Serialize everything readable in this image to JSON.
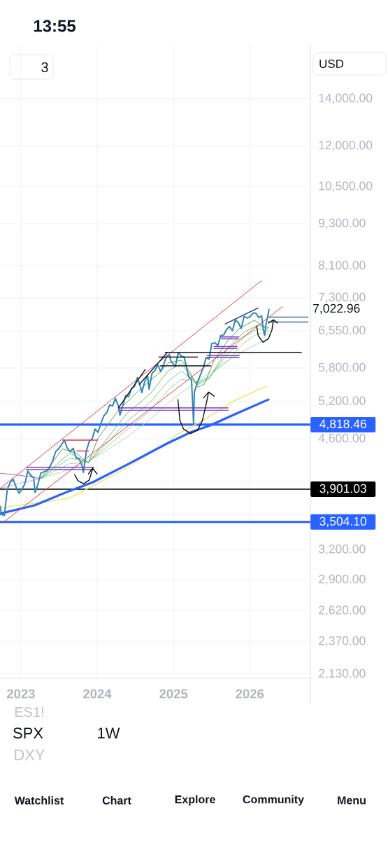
{
  "chart_data": {
    "type": "line",
    "log": "y",
    "grid": true,
    "xlim": [
      "2022-09-23",
      "2026-10-18"
    ],
    "ylim": [
      2100,
      16700
    ],
    "xticks": [
      "2023",
      "2024",
      "2025",
      "2026"
    ],
    "yticks": [
      {
        "value": 2130,
        "label": "2,130.00"
      },
      {
        "value": 2370,
        "label": "2,370.00"
      },
      {
        "value": 2620,
        "label": "2,620.00"
      },
      {
        "value": 2900,
        "label": "2,900.00"
      },
      {
        "value": 3200,
        "label": "3,200.00"
      },
      {
        "value": 3600,
        "label": null
      },
      {
        "value": 4000,
        "label": null
      },
      {
        "value": 4600,
        "label": "4,600.00"
      },
      {
        "value": 5200,
        "label": "5,200.00"
      },
      {
        "value": 5800,
        "label": "5,800.00"
      },
      {
        "value": 6550,
        "label": "6,550.00"
      },
      {
        "value": 7300,
        "label": "7,300.00"
      },
      {
        "value": 8100,
        "label": "8,100.00"
      },
      {
        "value": 9300,
        "label": "9,300.00"
      },
      {
        "value": 10500,
        "label": "10,500.00"
      },
      {
        "value": 12000,
        "label": "12,000.00"
      },
      {
        "value": 14000,
        "label": "14,000.00"
      }
    ],
    "ref_lines": [
      {
        "axis": "y",
        "value": 4818.46,
        "label": "4,818.46",
        "color": "#2962ff"
      },
      {
        "axis": "y",
        "value": 3901.03,
        "label": "3,901.03",
        "color": "#000000"
      },
      {
        "axis": "y",
        "value": 3504.1,
        "label": "3,504.10",
        "color": "#2962ff"
      }
    ],
    "series": [
      {
        "color": "#8e44ad",
        "x": [
          "2022-09-23",
          "2023-01-01",
          "2023-04-05"
        ],
        "values": [
          4110,
          4080,
          4040
        ]
      },
      {
        "color": "#b39ddb",
        "x": [
          "2022-09-23",
          "2023-01-01",
          "2023-04-05"
        ],
        "values": [
          3910,
          3980,
          4040
        ]
      },
      {
        "color": "#a5d6a7",
        "x": [
          "2023-04-05",
          "2023-08-22",
          "2023-10-30",
          "2024-02-12",
          "2024-05-23",
          "2024-09-11",
          "2025-01-05",
          "2025-04-26",
          "2025-08-17",
          "2025-12-05",
          "2026-04-01"
        ],
        "values": [
          4040,
          4160,
          4250,
          4420,
          4630,
          4900,
          5260,
          5560,
          5850,
          6140,
          6400
        ]
      },
      {
        "color": "#93cf95",
        "x": [
          "2023-04-05",
          "2023-08-22",
          "2023-11-20",
          "2024-02-12",
          "2024-05-23",
          "2024-09-11",
          "2024-12-08",
          "2025-02-08",
          "2025-04-26",
          "2025-06-21",
          "2025-09-19",
          "2025-12-05",
          "2026-02-10",
          "2026-04-01"
        ],
        "values": [
          4040,
          4240,
          4260,
          4470,
          4740,
          5040,
          5400,
          5590,
          5540,
          5650,
          5950,
          6300,
          6500,
          6470
        ]
      },
      {
        "color": "#7cc47f",
        "x": [
          "2023-04-05",
          "2023-08-22",
          "2023-11-20",
          "2024-02-12",
          "2024-05-23",
          "2024-09-11",
          "2024-12-08",
          "2025-02-08",
          "2025-04-26",
          "2025-06-21",
          "2025-09-19",
          "2025-12-05",
          "2026-02-10",
          "2026-04-01"
        ],
        "values": [
          4040,
          4320,
          4260,
          4520,
          4870,
          5180,
          5560,
          5740,
          5520,
          5620,
          6080,
          6420,
          6600,
          6530
        ]
      },
      {
        "color": "#5cb860",
        "x": [
          "2023-04-05",
          "2023-08-22",
          "2023-11-20",
          "2024-02-12",
          "2024-05-23",
          "2024-09-11",
          "2024-12-08",
          "2025-02-08",
          "2025-04-26",
          "2025-06-21",
          "2025-09-19",
          "2025-12-05",
          "2026-02-10",
          "2026-04-01"
        ],
        "values": [
          4040,
          4390,
          4250,
          4580,
          5000,
          5330,
          5750,
          5880,
          5490,
          5600,
          6200,
          6520,
          6680,
          6580
        ]
      },
      {
        "color": "#43a047",
        "x": [
          "2023-04-05",
          "2023-07-19",
          "2023-09-25",
          "2023-11-20",
          "2024-01-03",
          "2024-04-12",
          "2024-07-22",
          "2024-10-23",
          "2024-12-08",
          "2025-02-08",
          "2025-03-24",
          "2025-04-26",
          "2025-05-29",
          "2025-07-14",
          "2025-09-19",
          "2025-11-11",
          "2026-01-24",
          "2026-03-05",
          "2026-04-03"
        ],
        "values": [
          4040,
          4450,
          4380,
          4250,
          4600,
          5050,
          5400,
          5700,
          5900,
          5950,
          5700,
          5450,
          5500,
          5950,
          6350,
          6600,
          6780,
          6650,
          6620
        ]
      },
      {
        "color": "#f2e35c",
        "x": [
          "2022-09-23",
          "2023-01-11",
          "2023-04-05",
          "2023-08-22",
          "2023-12-10",
          "2024-05-26",
          "2024-12-02",
          "2025-01-15",
          "2025-05-19",
          "2025-10-14",
          "2026-03-24"
        ],
        "values": [
          3670,
          3710,
          3730,
          3790,
          3940,
          4190,
          4540,
          4660,
          4880,
          5200,
          5470
        ]
      },
      {
        "color": "#2962ff",
        "x": [
          "2022-09-23",
          "2023-03-08",
          "2023-08-22",
          "2023-12-10",
          "2024-05-26",
          "2024-12-02",
          "2025-03-24",
          "2025-06-21",
          "2025-11-01",
          "2026-03-31"
        ],
        "values": [
          3600,
          3700,
          3880,
          3990,
          4230,
          4530,
          4700,
          4800,
          5000,
          5230
        ]
      },
      {
        "color": "#e53950",
        "x": [
          "2022-09-23",
          "2026-02-26"
        ],
        "values": [
          3910,
          7720
        ]
      },
      {
        "color": "#e53950",
        "x": [
          "2022-10-09",
          "2026-06-07"
        ],
        "values": [
          3500,
          7090
        ]
      },
      {
        "color": "#2f86b8",
        "x": [
          "2022-09-23",
          "2022-09-30",
          "2022-10-14",
          "2022-10-28",
          "2022-11-11",
          "2022-11-25",
          "2022-12-09",
          "2022-12-23",
          "2023-01-06",
          "2023-01-20",
          "2023-02-03",
          "2023-02-17",
          "2023-03-03",
          "2023-03-10",
          "2023-03-24",
          "2023-04-06",
          "2023-04-21",
          "2023-05-05",
          "2023-05-19",
          "2023-06-02",
          "2023-06-16",
          "2023-06-30",
          "2023-07-14",
          "2023-07-28",
          "2023-08-11",
          "2023-08-25",
          "2023-09-08",
          "2023-09-22",
          "2023-10-06",
          "2023-10-20",
          "2023-10-27",
          "2023-11-10",
          "2023-11-24",
          "2023-12-08",
          "2023-12-22",
          "2024-01-05",
          "2024-01-19",
          "2024-02-02",
          "2024-02-16",
          "2024-03-01",
          "2024-03-15",
          "2024-03-28",
          "2024-04-12",
          "2024-04-19",
          "2024-05-03",
          "2024-05-17",
          "2024-05-31",
          "2024-06-14",
          "2024-06-28",
          "2024-07-12",
          "2024-07-26",
          "2024-08-02",
          "2024-08-16",
          "2024-08-30",
          "2024-09-06",
          "2024-09-20",
          "2024-10-04",
          "2024-10-18",
          "2024-11-01",
          "2024-11-15",
          "2024-11-29",
          "2024-12-13",
          "2024-12-20",
          "2025-01-10",
          "2025-01-24",
          "2025-02-07",
          "2025-02-21",
          "2025-03-07",
          "2025-03-14",
          "2025-03-28",
          "2025-04-04",
          "2025-04-07",
          "2025-04-11",
          "2025-04-25",
          "2025-05-09",
          "2025-05-23",
          "2025-06-06",
          "2025-06-20",
          "2025-07-03",
          "2025-07-18",
          "2025-08-01",
          "2025-08-15",
          "2025-08-29",
          "2025-09-12",
          "2025-09-26",
          "2025-10-10",
          "2025-10-24",
          "2025-11-07",
          "2025-11-21",
          "2025-12-05",
          "2025-12-19",
          "2026-01-02",
          "2026-01-16",
          "2026-01-30",
          "2026-02-13",
          "2026-02-27",
          "2026-03-06",
          "2026-03-13",
          "2026-03-20",
          "2026-03-27",
          "2026-04-03"
        ],
        "values": [
          3690,
          3590,
          3580,
          3900,
          3990,
          4030,
          3930,
          3850,
          3900,
          3970,
          4140,
          4080,
          4050,
          3860,
          3970,
          4110,
          4130,
          4140,
          4190,
          4280,
          4410,
          4450,
          4510,
          4580,
          4460,
          4410,
          4460,
          4320,
          4310,
          4220,
          4120,
          4420,
          4560,
          4600,
          4750,
          4700,
          4840,
          4960,
          5010,
          5140,
          5120,
          5250,
          5120,
          4970,
          5130,
          5300,
          5280,
          5430,
          5460,
          5620,
          5460,
          5350,
          5550,
          5650,
          5410,
          5700,
          5750,
          5860,
          5730,
          5870,
          6030,
          6050,
          5930,
          5830,
          6100,
          6030,
          6010,
          5770,
          5640,
          5580,
          5070,
          4840,
          5360,
          5530,
          5660,
          5800,
          6000,
          5970,
          6280,
          6300,
          6240,
          6450,
          6460,
          6580,
          6640,
          6550,
          6790,
          6730,
          6600,
          6870,
          6830,
          6860,
          6940,
          6940,
          6840,
          6880,
          6600,
          6450,
          6700,
          6850,
          7022.96
        ]
      },
      {
        "color": "#7b3fbf",
        "x": [
          "2023-01-27",
          "2023-12-17"
        ],
        "values": [
          4190,
          4190
        ]
      },
      {
        "color": "#7b3fbf",
        "x": [
          "2023-01-27",
          "2023-12-17"
        ],
        "values": [
          4160,
          4160
        ]
      },
      {
        "color": "#e53950",
        "x": [
          "2023-07-19",
          "2024-01-03"
        ],
        "values": [
          4580,
          4580
        ]
      },
      {
        "color": "#e53950",
        "x": [
          "2023-09-25",
          "2023-11-20"
        ],
        "values": [
          4420,
          4420
        ]
      },
      {
        "color": "#7b3fbf",
        "x": [
          "2024-04-12",
          "2025-09-19"
        ],
        "values": [
          5090,
          5090
        ]
      },
      {
        "color": "#7b3fbf",
        "x": [
          "2024-04-12",
          "2025-09-19"
        ],
        "values": [
          5050,
          5050
        ]
      },
      {
        "color": "#111111",
        "x": [
          "2024-11-22",
          "2026-09-05"
        ],
        "values": [
          6100,
          6100
        ]
      },
      {
        "color": "#111111",
        "x": [
          "2024-10-23",
          "2025-04-26"
        ],
        "values": [
          6010,
          6010
        ]
      },
      {
        "color": "#111111",
        "x": [
          "2024-10-30",
          "2025-06-28"
        ],
        "values": [
          5840,
          5840
        ]
      },
      {
        "color": "#7b3fbf",
        "x": [
          "2025-06-11",
          "2025-11-11"
        ],
        "values": [
          6040,
          6040
        ]
      },
      {
        "color": "#7b3fbf",
        "x": [
          "2025-06-11",
          "2025-11-11"
        ],
        "values": [
          6000,
          6000
        ]
      },
      {
        "color": "#7b3fbf",
        "x": [
          "2025-07-14",
          "2025-11-01"
        ],
        "values": [
          6220,
          6220
        ]
      },
      {
        "color": "#7b3fbf",
        "x": [
          "2025-07-14",
          "2025-11-01"
        ],
        "values": [
          6180,
          6180
        ]
      },
      {
        "color": "#7b3fbf",
        "x": [
          "2025-08-17",
          "2025-11-08"
        ],
        "values": [
          6420,
          6420
        ]
      },
      {
        "color": "#7b3fbf",
        "x": [
          "2025-08-17",
          "2025-11-08"
        ],
        "values": [
          6380,
          6380
        ]
      },
      {
        "color": "#4a6fa5",
        "x": [
          "2026-03-31",
          "2026-10-07"
        ],
        "values": [
          6850,
          6850
        ]
      },
      {
        "color": "#4a6fa5",
        "x": [
          "2026-03-31",
          "2026-10-07"
        ],
        "values": [
          6740,
          6740
        ]
      },
      {
        "color": "#111111",
        "x": [
          "2024-04-12",
          "2024-08-18"
        ],
        "values": [
          5090,
          5770
        ]
      },
      {
        "color": "#111111",
        "x": [
          "2024-07-22",
          "2024-12-02"
        ],
        "values": [
          5500,
          6100
        ]
      },
      {
        "color": "#1e3a8a",
        "x": [
          "2025-09-06",
          "2026-02-10"
        ],
        "values": [
          6700,
          7060
        ]
      },
      {
        "color": "#111111",
        "x": [
          "2023-09-15",
          "2023-10-01",
          "2023-10-28",
          "2023-11-24",
          "2023-12-07",
          "2023-12-10",
          "2023-11-20",
          "2023-12-10",
          "2023-12-31"
        ],
        "values": [
          4090,
          4010,
          3970,
          4020,
          4140,
          4180,
          4100,
          4180,
          4100
        ]
      },
      {
        "color": "#111111",
        "x": [
          "2025-01-22",
          "2025-02-01",
          "2025-02-18",
          "2025-03-24",
          "2025-04-26",
          "2025-05-19",
          "2025-06-08",
          "2025-06-18",
          "2025-05-26",
          "2025-06-18",
          "2025-07-14"
        ],
        "values": [
          5230,
          4880,
          4750,
          4680,
          4730,
          4880,
          5180,
          5360,
          5260,
          5360,
          5290
        ]
      },
      {
        "color": "#111111",
        "x": [
          "2026-02-03",
          "2026-02-10",
          "2026-03-05",
          "2026-03-31",
          "2026-04-17",
          "2026-04-24",
          "2026-03-31",
          "2026-04-24",
          "2026-05-14"
        ],
        "values": [
          6650,
          6450,
          6310,
          6380,
          6570,
          6790,
          6720,
          6790,
          6720
        ]
      }
    ],
    "annotations": [
      "13:55",
      "3",
      "USD",
      "ES1!",
      "SPX",
      "1W",
      "DXY",
      "Watchlist",
      "Chart",
      "Explore",
      "Community",
      "Menu",
      "7,022.96"
    ]
  }
}
